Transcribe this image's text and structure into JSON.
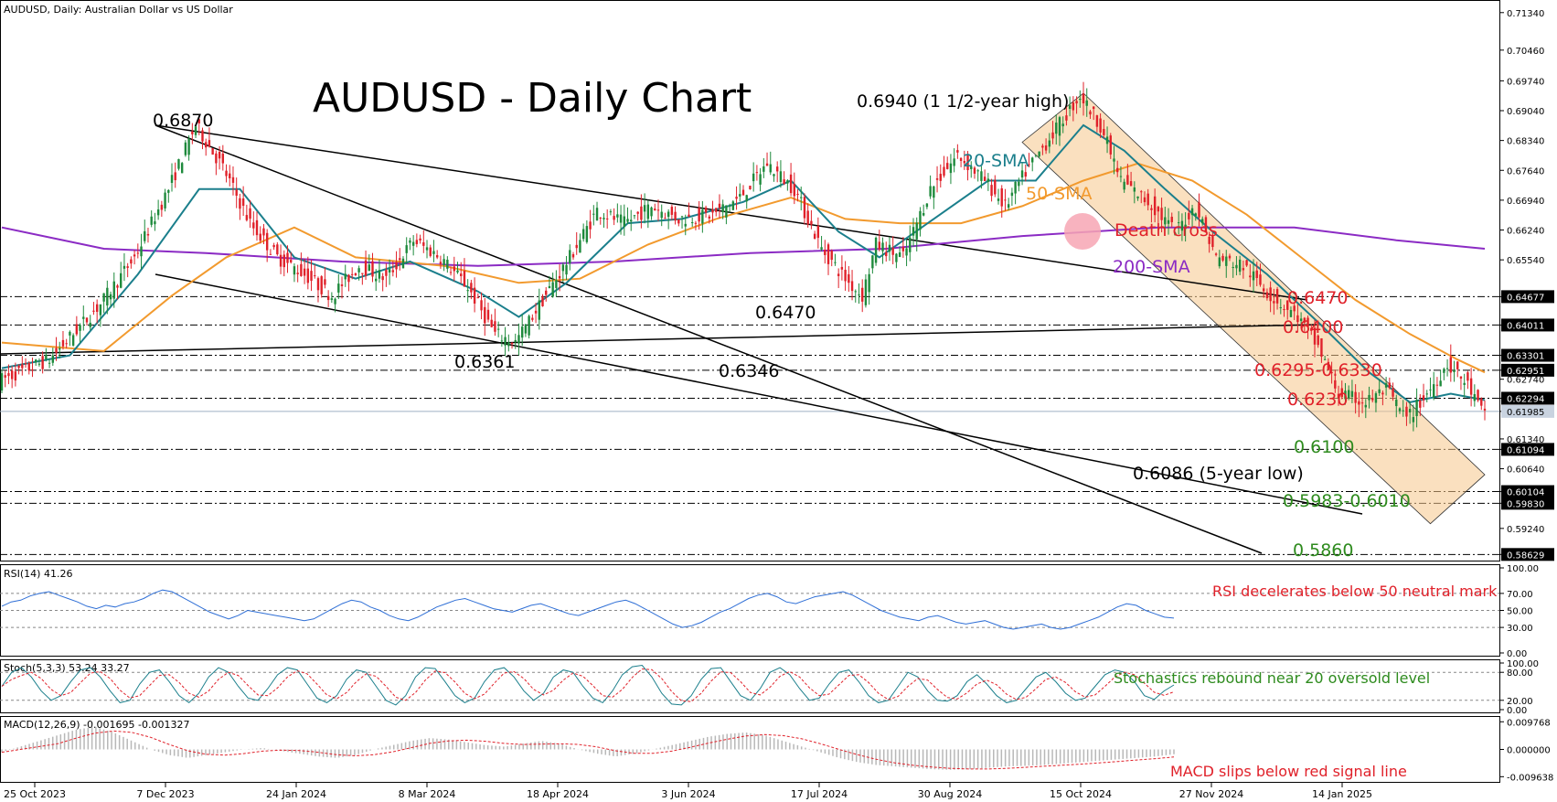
{
  "header": {
    "text": "AUDUSD, Daily:  Australian Dollar vs US Dollar"
  },
  "chart_title": "AUDUSD - Daily Chart",
  "colors": {
    "up": "#1e8a3c",
    "down": "#e0212a",
    "sma20": "#1b7f8c",
    "sma50": "#f29a2e",
    "sma200": "#8b2bc4",
    "channel": "#f6c68a",
    "red_text": "#e0212a",
    "green_text": "#2e8b1e",
    "rsi": "#2f6fd6",
    "signal": "#e0212a"
  },
  "chart_data": [
    {
      "type": "candlestick",
      "x_labels": [
        "25 Oct 2023",
        "7 Dec 2023",
        "24 Jan 2024",
        "8 Mar 2024",
        "18 Apr 2024",
        "3 Jun 2024",
        "17 Jul 2024",
        "30 Aug 2024",
        "15 Oct 2024",
        "27 Nov 2024",
        "14 Jan 2025"
      ],
      "y_ticks": [
        "0.71340",
        "0.70460",
        "0.69740",
        "0.69040",
        "0.68340",
        "0.67640",
        "0.66940",
        "0.66240",
        "0.65540",
        "0.64677",
        "0.64011",
        "0.63301",
        "0.62951",
        "0.62740",
        "0.62294",
        "0.61985",
        "0.61340",
        "0.61094",
        "0.60640",
        "0.60104",
        "0.59830",
        "0.59240",
        "0.58629"
      ],
      "ylim": [
        0.5855,
        0.7155
      ],
      "current_price": "0.61985",
      "price_path": [
        [
          0,
          0.627
        ],
        [
          15,
          0.632
        ],
        [
          30,
          0.645
        ],
        [
          40,
          0.656
        ],
        [
          50,
          0.672
        ],
        [
          58,
          0.687
        ],
        [
          66,
          0.677
        ],
        [
          74,
          0.664
        ],
        [
          82,
          0.656
        ],
        [
          90,
          0.652
        ],
        [
          98,
          0.647
        ],
        [
          106,
          0.654
        ],
        [
          114,
          0.651
        ],
        [
          122,
          0.66
        ],
        [
          130,
          0.656
        ],
        [
          138,
          0.649
        ],
        [
          146,
          0.638
        ],
        [
          152,
          0.6361
        ],
        [
          160,
          0.646
        ],
        [
          168,
          0.656
        ],
        [
          176,
          0.667
        ],
        [
          184,
          0.664
        ],
        [
          192,
          0.668
        ],
        [
          200,
          0.665
        ],
        [
          210,
          0.666
        ],
        [
          218,
          0.67
        ],
        [
          226,
          0.678
        ],
        [
          234,
          0.672
        ],
        [
          242,
          0.658
        ],
        [
          250,
          0.65
        ],
        [
          254,
          0.647
        ],
        [
          258,
          0.659
        ],
        [
          266,
          0.656
        ],
        [
          274,
          0.672
        ],
        [
          282,
          0.68
        ],
        [
          290,
          0.674
        ],
        [
          296,
          0.668
        ],
        [
          302,
          0.676
        ],
        [
          310,
          0.685
        ],
        [
          318,
          0.694
        ],
        [
          324,
          0.687
        ],
        [
          330,
          0.674
        ],
        [
          338,
          0.669
        ],
        [
          346,
          0.662
        ],
        [
          352,
          0.668
        ],
        [
          358,
          0.656
        ],
        [
          366,
          0.654
        ],
        [
          374,
          0.647
        ],
        [
          382,
          0.642
        ],
        [
          388,
          0.635
        ],
        [
          394,
          0.624
        ],
        [
          402,
          0.622
        ],
        [
          408,
          0.625
        ],
        [
          414,
          0.618
        ],
        [
          420,
          0.624
        ],
        [
          426,
          0.631
        ],
        [
          432,
          0.626
        ],
        [
          436,
          0.6198
        ]
      ]
    },
    {
      "type": "line",
      "series": [
        {
          "name": "20-SMA",
          "points": [
            [
              0,
              0.63
            ],
            [
              20,
              0.633
            ],
            [
              40,
              0.652
            ],
            [
              58,
              0.672
            ],
            [
              70,
              0.672
            ],
            [
              86,
              0.656
            ],
            [
              104,
              0.651
            ],
            [
              120,
              0.655
            ],
            [
              140,
              0.648
            ],
            [
              152,
              0.642
            ],
            [
              166,
              0.65
            ],
            [
              184,
              0.664
            ],
            [
              200,
              0.665
            ],
            [
              218,
              0.669
            ],
            [
              232,
              0.674
            ],
            [
              246,
              0.662
            ],
            [
              258,
              0.656
            ],
            [
              274,
              0.665
            ],
            [
              290,
              0.674
            ],
            [
              304,
              0.674
            ],
            [
              318,
              0.687
            ],
            [
              330,
              0.681
            ],
            [
              342,
              0.672
            ],
            [
              356,
              0.662
            ],
            [
              372,
              0.652
            ],
            [
              388,
              0.64
            ],
            [
              402,
              0.629
            ],
            [
              414,
              0.622
            ],
            [
              426,
              0.624
            ],
            [
              436,
              0.6225
            ]
          ]
        },
        {
          "name": "50-SMA",
          "points": [
            [
              0,
              0.636
            ],
            [
              30,
              0.634
            ],
            [
              50,
              0.647
            ],
            [
              66,
              0.656
            ],
            [
              86,
              0.663
            ],
            [
              104,
              0.656
            ],
            [
              130,
              0.654
            ],
            [
              152,
              0.65
            ],
            [
              170,
              0.651
            ],
            [
              190,
              0.659
            ],
            [
              210,
              0.665
            ],
            [
              232,
              0.67
            ],
            [
              248,
              0.665
            ],
            [
              264,
              0.664
            ],
            [
              282,
              0.664
            ],
            [
              300,
              0.668
            ],
            [
              318,
              0.674
            ],
            [
              334,
              0.678
            ],
            [
              350,
              0.674
            ],
            [
              366,
              0.666
            ],
            [
              382,
              0.656
            ],
            [
              398,
              0.646
            ],
            [
              414,
              0.638
            ],
            [
              428,
              0.632
            ],
            [
              436,
              0.629
            ]
          ]
        },
        {
          "name": "200-SMA",
          "points": [
            [
              0,
              0.663
            ],
            [
              30,
              0.658
            ],
            [
              60,
              0.657
            ],
            [
              100,
              0.655
            ],
            [
              140,
              0.654
            ],
            [
              180,
              0.655
            ],
            [
              220,
              0.657
            ],
            [
              260,
              0.658
            ],
            [
              300,
              0.661
            ],
            [
              340,
              0.663
            ],
            [
              380,
              0.663
            ],
            [
              410,
              0.66
            ],
            [
              436,
              0.658
            ]
          ]
        }
      ]
    },
    {
      "type": "line",
      "panel": "RSI",
      "header": "RSI(14) 41.26",
      "y_ticks": [
        "100.00",
        "70.00",
        "50.00",
        "30.00",
        "0.00"
      ],
      "ylim": [
        0,
        100
      ],
      "series": [
        {
          "values": [
            55,
            60,
            62,
            67,
            70,
            72,
            68,
            64,
            60,
            55,
            52,
            56,
            54,
            58,
            60,
            64,
            70,
            74,
            72,
            66,
            60,
            54,
            48,
            44,
            40,
            44,
            50,
            48,
            46,
            44,
            42,
            40,
            38,
            40,
            46,
            52,
            58,
            62,
            60,
            54,
            50,
            44,
            40,
            38,
            42,
            48,
            54,
            58,
            62,
            64,
            60,
            56,
            52,
            50,
            48,
            52,
            56,
            58,
            54,
            50,
            46,
            44,
            48,
            52,
            56,
            60,
            62,
            58,
            52,
            46,
            40,
            34,
            30,
            32,
            36,
            42,
            48,
            52,
            58,
            64,
            68,
            70,
            66,
            60,
            58,
            62,
            66,
            68,
            70,
            72,
            68,
            62,
            56,
            50,
            46,
            42,
            40,
            38,
            42,
            44,
            40,
            36,
            34,
            36,
            38,
            34,
            30,
            28,
            30,
            32,
            34,
            30,
            28,
            30,
            34,
            38,
            42,
            48,
            54,
            58,
            56,
            50,
            46,
            42,
            41
          ]
        }
      ]
    },
    {
      "type": "line",
      "panel": "Stochastic",
      "header": "Stoch(5,3,3) 53.24 33.27",
      "y_ticks": [
        "100.00",
        "80.00",
        "20.00",
        "0.00"
      ],
      "ylim": [
        0,
        100
      ],
      "series": [
        {
          "values": [
            50,
            80,
            90,
            70,
            40,
            20,
            30,
            60,
            85,
            90,
            70,
            40,
            15,
            20,
            55,
            80,
            85,
            60,
            30,
            15,
            35,
            70,
            90,
            80,
            50,
            25,
            20,
            45,
            75,
            90,
            85,
            55,
            25,
            15,
            30,
            65,
            85,
            80,
            50,
            20,
            10,
            30,
            70,
            90,
            88,
            60,
            30,
            15,
            25,
            60,
            85,
            90,
            70,
            40,
            20,
            35,
            70,
            85,
            80,
            50,
            25,
            15,
            40,
            75,
            92,
            95,
            70,
            35,
            12,
            10,
            30,
            65,
            88,
            90,
            60,
            30,
            20,
            45,
            80,
            90,
            75,
            45,
            20,
            25,
            55,
            80,
            85,
            60,
            30,
            15,
            20,
            50,
            80,
            70,
            40,
            20,
            18,
            30,
            60,
            75,
            55,
            30,
            15,
            20,
            45,
            70,
            80,
            60,
            35,
            20,
            25,
            50,
            75,
            85,
            80,
            60,
            30,
            22,
            40,
            53
          ]
        }
      ]
    },
    {
      "type": "line",
      "panel": "MACD",
      "header": "MACD(12,26,9) -0.001695 -0.001327",
      "y_ticks": [
        "0.009768",
        "0.000000",
        "-0.009638"
      ],
      "ylim": [
        -0.0105,
        0.0105
      ],
      "series": [
        {
          "values": [
            -0.001,
            0.001,
            0.003,
            0.005,
            0.007,
            0.008,
            0.006,
            0.003,
            0.0,
            -0.002,
            -0.003,
            -0.002,
            -0.001,
            0.0,
            0.0005,
            -0.0005,
            -0.0015,
            -0.0025,
            -0.003,
            -0.002,
            0.0,
            0.0015,
            0.003,
            0.004,
            0.0035,
            0.0025,
            0.0015,
            0.001,
            0.002,
            0.003,
            0.002,
            0.0,
            -0.0015,
            -0.0025,
            -0.0015,
            0.0,
            0.0015,
            0.003,
            0.0045,
            0.0055,
            0.006,
            0.005,
            0.003,
            0.001,
            -0.001,
            -0.003,
            -0.0045,
            -0.0055,
            -0.006,
            -0.0065,
            -0.007,
            -0.0072,
            -0.007,
            -0.0065,
            -0.006,
            -0.0058,
            -0.0055,
            -0.005,
            -0.0045,
            -0.004,
            -0.0035,
            -0.003,
            -0.0025,
            -0.0017
          ]
        }
      ]
    }
  ],
  "annotations": {
    "high_1": "0.6870",
    "high_2": "0.6940 (1 1/2-year high)",
    "low_1": "0.6361",
    "low_2": "0.6346",
    "mid_low": "0.6470",
    "sma20": "20-SMA",
    "sma50": "50-SMA",
    "sma200": "200-SMA",
    "death_cross": "Death cross",
    "low_5yr": "0.6086 (5-year low)",
    "level_6470": "0.6470",
    "level_6400": "0.6400",
    "level_6295": "0.6295-0.6330",
    "level_6230": "0.6230",
    "level_6100": "0.6100",
    "level_5983": "0.5983-0.6010",
    "level_5860": "0.5860",
    "rsi_note": "RSI decelerates below 50 neutral mark",
    "stoch_note": "Stochastics rebound near 20 oversold level",
    "macd_note": "MACD slips below red signal line"
  }
}
